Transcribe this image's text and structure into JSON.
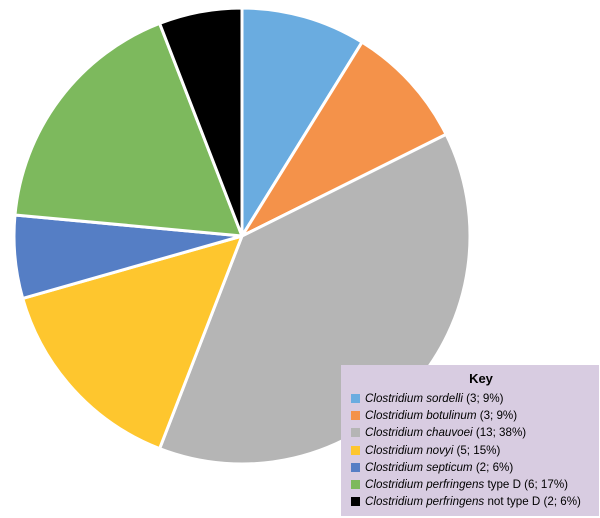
{
  "chart_data": {
    "type": "pie",
    "legend_title": "Key",
    "legend_position": "bottom-right",
    "slices": [
      {
        "genus": "Clostridium",
        "species": "sordelli",
        "suffix": "",
        "count": 3,
        "percent": 9,
        "color": "#6aace0"
      },
      {
        "genus": "Clostridium",
        "species": "botulinum",
        "suffix": "",
        "count": 3,
        "percent": 9,
        "color": "#f4924a"
      },
      {
        "genus": "Clostridium",
        "species": "chauvoei",
        "suffix": "",
        "count": 13,
        "percent": 38,
        "color": "#b5b5b5"
      },
      {
        "genus": "Clostridium",
        "species": "novyi",
        "suffix": "",
        "count": 5,
        "percent": 15,
        "color": "#fec62e"
      },
      {
        "genus": "Clostridium",
        "species": "septicum",
        "suffix": "",
        "count": 2,
        "percent": 6,
        "color": "#557ec5"
      },
      {
        "genus": "Clostridium",
        "species": "perfringens",
        "suffix": "type D",
        "count": 6,
        "percent": 17,
        "color": "#7db95d"
      },
      {
        "genus": "Clostridium",
        "species": "perfringens",
        "suffix": "not type D",
        "count": 2,
        "percent": 6,
        "color": "#000000"
      }
    ]
  }
}
